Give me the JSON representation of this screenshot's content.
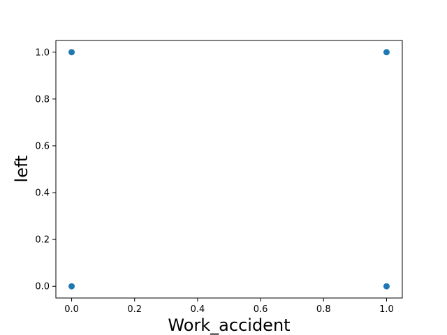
{
  "chart_data": {
    "type": "scatter",
    "title": "",
    "xlabel": "Work_accident",
    "ylabel": "left",
    "xlim": [
      -0.05,
      1.05
    ],
    "ylim": [
      -0.05,
      1.05
    ],
    "xticks": [
      0.0,
      0.2,
      0.4,
      0.6,
      0.8,
      1.0
    ],
    "xtick_labels": [
      "0.0",
      "0.2",
      "0.4",
      "0.6",
      "0.8",
      "1.0"
    ],
    "yticks": [
      0.0,
      0.2,
      0.4,
      0.6,
      0.8,
      1.0
    ],
    "ytick_labels": [
      "0.0",
      "0.2",
      "0.4",
      "0.6",
      "0.8",
      "1.0"
    ],
    "grid": false,
    "legend": "none",
    "series": [
      {
        "color": "#1f77b4",
        "points": [
          {
            "x": 0,
            "y": 0
          },
          {
            "x": 0,
            "y": 1
          },
          {
            "x": 1,
            "y": 0
          },
          {
            "x": 1,
            "y": 1
          }
        ]
      }
    ]
  }
}
